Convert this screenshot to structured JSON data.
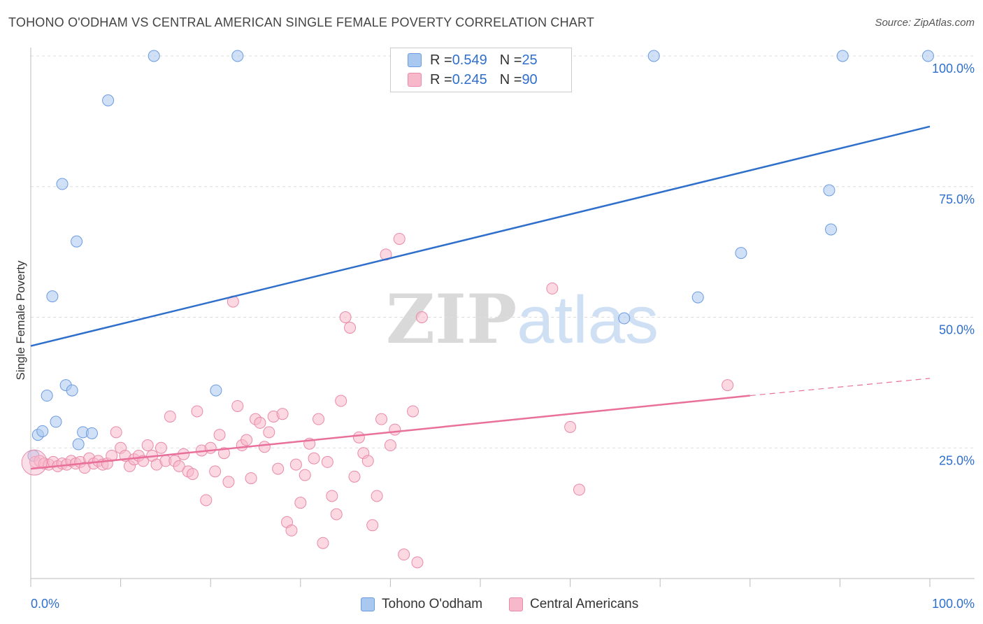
{
  "title": "TOHONO O'ODHAM VS CENTRAL AMERICAN SINGLE FEMALE POVERTY CORRELATION CHART",
  "source": "Source: ZipAtlas.com",
  "watermark": {
    "zip": "ZIP",
    "atlas": "atlas"
  },
  "legend_top": [
    {
      "r_label": "R = ",
      "r_value": "0.549",
      "n_label": "N = ",
      "n_value": "25",
      "color": "#a9c8f0"
    },
    {
      "r_label": "R = ",
      "r_value": "0.245",
      "n_label": "N = ",
      "n_value": "90",
      "color": "#f7b8cb"
    }
  ],
  "legend_bottom": [
    {
      "label": "Tohono O'odham",
      "color": "#a9c8f0"
    },
    {
      "label": "Central Americans",
      "color": "#f7b8cb"
    }
  ],
  "chart_data": {
    "type": "scatter",
    "ylabel": "Single Female Poverty",
    "xlim": [
      0,
      100
    ],
    "ylim": [
      0,
      100
    ],
    "x_tick_labels": [
      "0.0%",
      "100.0%"
    ],
    "y_tick_labels": [
      {
        "value": 25,
        "label": "25.0%"
      },
      {
        "value": 50,
        "label": "50.0%"
      },
      {
        "value": 75,
        "label": "75.0%"
      },
      {
        "value": 100,
        "label": "100.0%"
      }
    ],
    "grid": true,
    "series": [
      {
        "name": "Tohono O'odham",
        "color": "#a9c8f0",
        "stroke": "#6b9be0",
        "trend": {
          "x": [
            0,
            100
          ],
          "y": [
            44.5,
            86.5
          ],
          "color": "#2f6fcc"
        },
        "points": [
          [
            0.3,
            23.5
          ],
          [
            0.8,
            27.5
          ],
          [
            1.3,
            28.2
          ],
          [
            1.8,
            35
          ],
          [
            2.4,
            54
          ],
          [
            2.8,
            30
          ],
          [
            3.5,
            75.5
          ],
          [
            3.9,
            37
          ],
          [
            4.6,
            36
          ],
          [
            5.1,
            64.5
          ],
          [
            5.3,
            25.7
          ],
          [
            5.8,
            28
          ],
          [
            6.8,
            27.8
          ],
          [
            8.6,
            91.5
          ],
          [
            13.7,
            100
          ],
          [
            20.6,
            36
          ],
          [
            23,
            100
          ],
          [
            66,
            49.8
          ],
          [
            69.3,
            100
          ],
          [
            74.2,
            53.8
          ],
          [
            79,
            62.3
          ],
          [
            90.3,
            100
          ],
          [
            88.8,
            74.3
          ],
          [
            89,
            66.8
          ],
          [
            99.8,
            100
          ]
        ]
      },
      {
        "name": "Central Americans",
        "color": "#f7b8cb",
        "stroke": "#e98aa8",
        "trend": {
          "x": [
            0,
            80
          ],
          "y": [
            21,
            35
          ],
          "dash_x": [
            80,
            100
          ],
          "dash_y": [
            35,
            38.3
          ],
          "color": "#e8709a"
        },
        "points": [
          [
            0.5,
            22.3
          ],
          [
            1,
            22.5
          ],
          [
            1.5,
            22
          ],
          [
            2,
            21.8
          ],
          [
            2.5,
            22.3
          ],
          [
            3,
            21.5
          ],
          [
            3.5,
            22
          ],
          [
            4,
            21.8
          ],
          [
            4.5,
            22.5
          ],
          [
            5,
            22
          ],
          [
            5.5,
            22.3
          ],
          [
            6,
            21.2
          ],
          [
            6.5,
            23
          ],
          [
            7,
            22
          ],
          [
            7.5,
            22.5
          ],
          [
            8,
            21.8
          ],
          [
            8.5,
            22
          ],
          [
            9,
            23.5
          ],
          [
            9.5,
            28
          ],
          [
            10,
            25
          ],
          [
            10.5,
            23.5
          ],
          [
            11,
            21.5
          ],
          [
            11.5,
            22.8
          ],
          [
            12,
            23.5
          ],
          [
            12.5,
            22.5
          ],
          [
            13,
            25.5
          ],
          [
            13.5,
            23.5
          ],
          [
            14,
            21.8
          ],
          [
            14.5,
            25
          ],
          [
            15,
            22.5
          ],
          [
            15.5,
            31
          ],
          [
            16,
            22.5
          ],
          [
            16.5,
            21.5
          ],
          [
            17,
            23.8
          ],
          [
            17.5,
            20.5
          ],
          [
            18,
            20
          ],
          [
            18.5,
            32
          ],
          [
            19,
            24.5
          ],
          [
            19.5,
            15
          ],
          [
            20,
            25
          ],
          [
            20.5,
            20.5
          ],
          [
            21,
            27.5
          ],
          [
            21.5,
            24
          ],
          [
            22,
            18.5
          ],
          [
            22.5,
            53
          ],
          [
            23,
            33
          ],
          [
            23.5,
            25.5
          ],
          [
            24,
            26.5
          ],
          [
            24.5,
            19.2
          ],
          [
            25,
            30.5
          ],
          [
            25.5,
            29.8
          ],
          [
            26,
            25.2
          ],
          [
            26.5,
            28
          ],
          [
            27,
            31
          ],
          [
            27.5,
            21
          ],
          [
            28,
            31.5
          ],
          [
            28.5,
            10.8
          ],
          [
            29,
            9.2
          ],
          [
            29.5,
            21.8
          ],
          [
            30,
            14.5
          ],
          [
            30.5,
            19.8
          ],
          [
            31,
            25.8
          ],
          [
            31.5,
            23
          ],
          [
            32,
            30.5
          ],
          [
            32.5,
            6.8
          ],
          [
            33,
            22.3
          ],
          [
            33.5,
            15.8
          ],
          [
            34,
            12.3
          ],
          [
            34.5,
            34
          ],
          [
            35,
            50
          ],
          [
            35.5,
            48
          ],
          [
            36,
            19.5
          ],
          [
            36.5,
            27
          ],
          [
            37,
            24
          ],
          [
            37.5,
            22.5
          ],
          [
            38,
            10.2
          ],
          [
            38.5,
            15.8
          ],
          [
            39,
            30.5
          ],
          [
            39.5,
            62
          ],
          [
            40,
            25.5
          ],
          [
            40.5,
            28.5
          ],
          [
            41,
            65
          ],
          [
            41.5,
            4.6
          ],
          [
            42.5,
            32
          ],
          [
            43,
            3.1
          ],
          [
            43.5,
            50
          ],
          [
            58,
            55.5
          ],
          [
            60,
            29
          ],
          [
            61,
            17
          ],
          [
            77.5,
            37
          ]
        ]
      }
    ]
  }
}
